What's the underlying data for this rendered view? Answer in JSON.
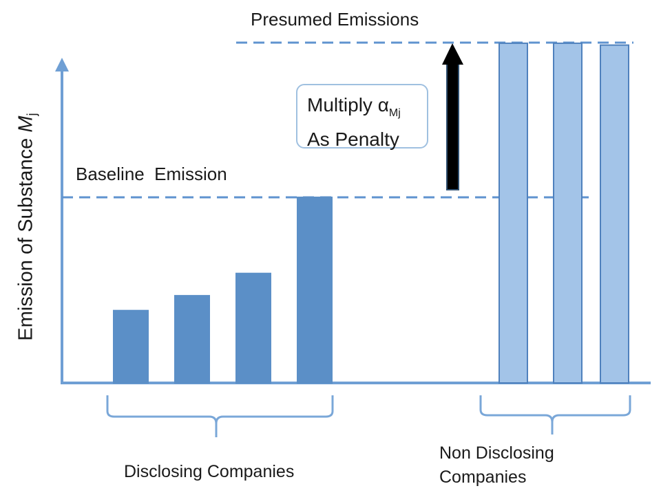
{
  "chart_data": {
    "type": "bar",
    "ylabel_prefix": "Emission of Substance ",
    "ylabel_symbol": "M",
    "ylabel_subscript": "j",
    "groups": [
      {
        "label": "Disclosing Companies",
        "color": "#5b8fc7",
        "values": [
          0.39,
          0.47,
          0.59,
          1.0
        ]
      },
      {
        "label": "Non Disclosing Companies",
        "label_lines": [
          "Non Disclosing",
          "Companies"
        ],
        "color": "#a3c4e8",
        "values": [
          1.83,
          1.83,
          1.82
        ]
      }
    ],
    "reference_lines": [
      {
        "label": "Baseline  Emission",
        "value": 1.0
      },
      {
        "label": "Presumed Emissions",
        "value": 1.83
      }
    ],
    "ylim": [
      0,
      2.0
    ],
    "annotation": {
      "line1": "Multiply α",
      "line1_subscript": "Mj",
      "line2": "As Penalty"
    },
    "colors": {
      "axis": "#6f9fd4",
      "dashed_line": "#5f93cf",
      "bar_disclosing": "#5b8fc7",
      "bar_nondisclosing": "#a3c4e8",
      "bar_stroke": "#4f81bd",
      "arrow": "#000000",
      "brace": "#7aa7d8"
    }
  }
}
